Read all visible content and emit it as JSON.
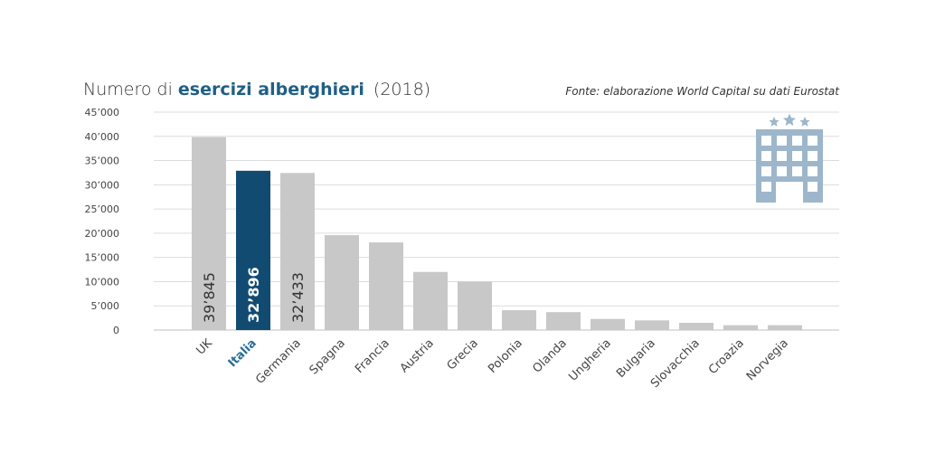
{
  "chart_data": {
    "type": "bar",
    "title_plain": "Numero di ",
    "title_emph": "esercizi alberghieri",
    "title_year": "(2018)",
    "source": "Fonte: elaborazione World Capital su dati Eurostat",
    "categories": [
      "UK",
      "Italia",
      "Germania",
      "Spagna",
      "Francia",
      "Austria",
      "Grecia",
      "Polonia",
      "Olanda",
      "Ungheria",
      "Bulgaria",
      "Slovacchia",
      "Croazia",
      "Norvegia"
    ],
    "values": [
      39845,
      32896,
      32433,
      19600,
      18100,
      12000,
      10000,
      4100,
      3700,
      2300,
      2000,
      1500,
      1000,
      1000
    ],
    "value_labels": [
      "39’845",
      "32’896",
      "32’433",
      "",
      "",
      "",
      "",
      "",
      "",
      "",
      "",
      "",
      "",
      ""
    ],
    "highlight_index": 1,
    "ylim": [
      0,
      45000
    ],
    "yticks": [
      "0",
      "5’000",
      "10’000",
      "15’000",
      "20’000",
      "25’000",
      "30’000",
      "35’000",
      "40’000",
      "45’000"
    ],
    "ytick_values": [
      0,
      5000,
      10000,
      15000,
      20000,
      25000,
      30000,
      35000,
      40000,
      45000
    ],
    "grid": true,
    "colors": {
      "bar": "#c8c8c8",
      "highlight": "#124b72",
      "icon": "#9db6cb"
    },
    "icon": "hotel-building-icon"
  }
}
